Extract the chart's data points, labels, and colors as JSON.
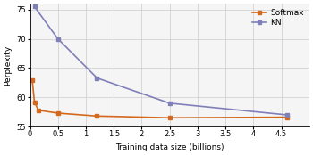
{
  "softmax_x": [
    0.04,
    0.08,
    0.15,
    0.5,
    1.2,
    2.5,
    4.6
  ],
  "softmax_y": [
    63.0,
    59.2,
    57.8,
    57.3,
    56.8,
    56.5,
    56.6
  ],
  "kn_x": [
    0.08,
    0.5,
    1.2,
    2.5,
    4.6
  ],
  "kn_y": [
    75.5,
    70.0,
    63.3,
    59.0,
    57.0
  ],
  "softmax_color": "#d4691e",
  "kn_color": "#8080b8",
  "xlabel": "Training data size (billions)",
  "ylabel": "Perplexity",
  "xlim": [
    0,
    5
  ],
  "ylim": [
    55,
    76
  ],
  "yticks": [
    55,
    60,
    65,
    70,
    75
  ],
  "xticks": [
    0,
    0.5,
    1,
    1.5,
    2,
    2.5,
    3,
    3.5,
    4,
    4.5
  ],
  "xticklabels": [
    "0",
    "0.5",
    "1",
    "1.5",
    "2",
    "2.5",
    "3",
    "3.5",
    "4",
    "4.5"
  ],
  "legend_labels": [
    "Softmax",
    "KN"
  ],
  "marker": "s",
  "markersize": 2.8,
  "linewidth": 1.2,
  "axis_fontsize": 6.5,
  "tick_fontsize": 6.0,
  "legend_fontsize": 6.5,
  "bg_color": "#f5f5f5"
}
